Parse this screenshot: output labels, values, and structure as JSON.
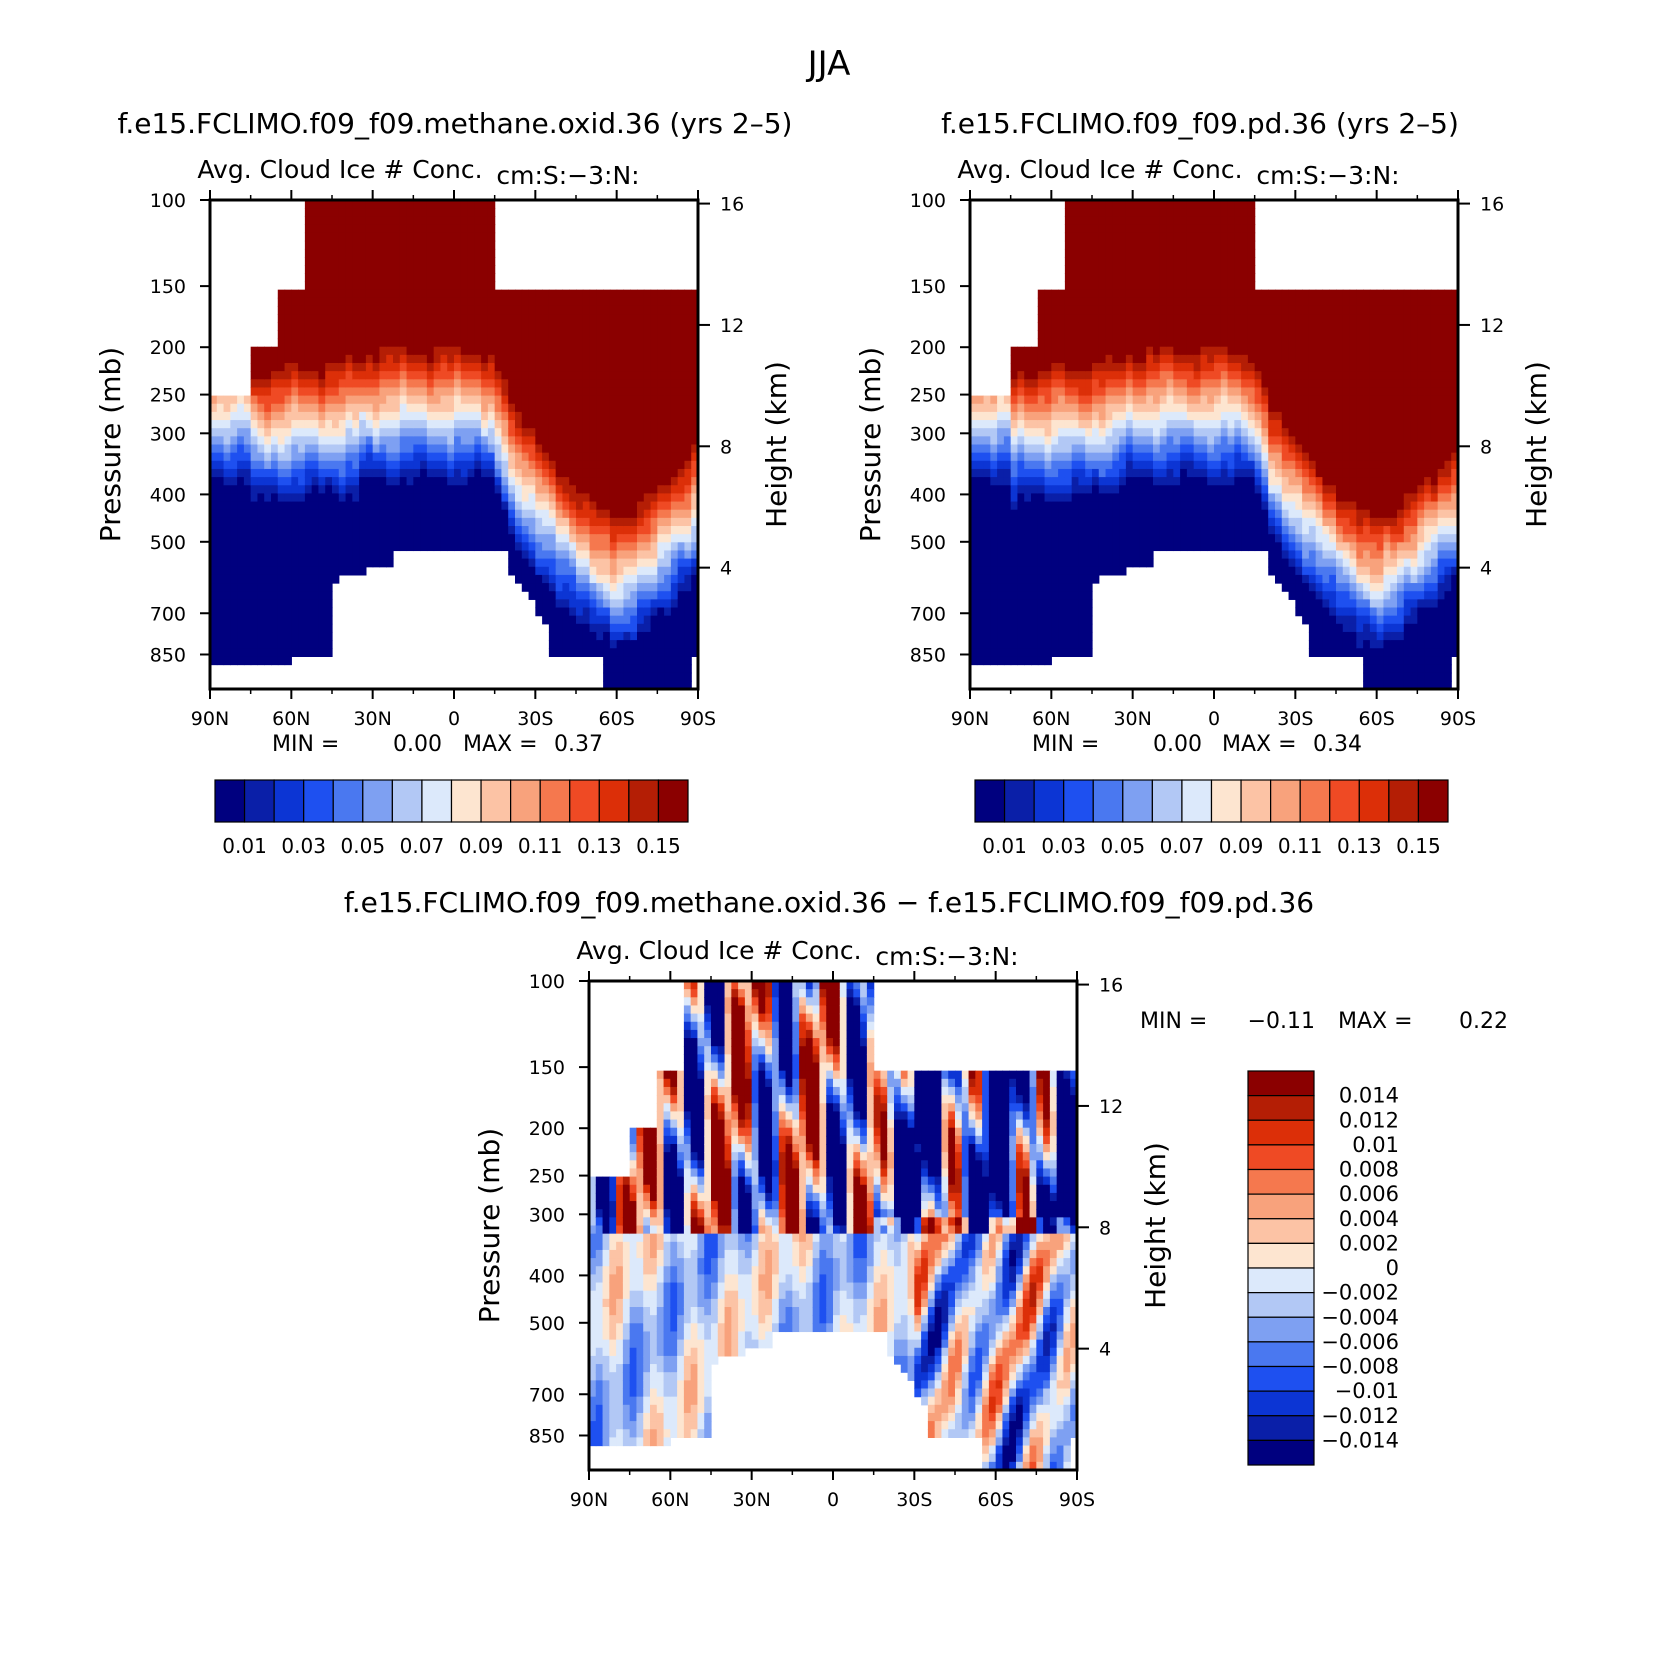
{
  "page_title": "JJA",
  "chart_data": [
    {
      "type": "heatmap",
      "case_title": "f.e15.FCLIMO.f09_f09.methane.oxid.36 (yrs 2–5)",
      "title": "Avg. Cloud Ice # Conc.",
      "units": "cm:S:−3:N:",
      "ylabel": "Pressure (mb)",
      "y2label": "Height (km)",
      "x_ticks": [
        "90N",
        "60N",
        "30N",
        "0",
        "30S",
        "60S",
        "90S"
      ],
      "x_ticks_value": [
        90,
        60,
        30,
        0,
        -30,
        -60,
        -90
      ],
      "y_ticks": [
        "100",
        "150",
        "200",
        "250",
        "300",
        "400",
        "500",
        "700",
        "850"
      ],
      "y_ticks_value": [
        100,
        150,
        200,
        250,
        300,
        400,
        500,
        700,
        850
      ],
      "y_scale": "log",
      "ylim": [
        100,
        1000
      ],
      "y2_ticks": [
        "4",
        "8",
        "12",
        "16"
      ],
      "y2_ticks_value": [
        4,
        8,
        12,
        16
      ],
      "min_label": "MIN =",
      "min_value": "0.00",
      "max_label": "MAX =",
      "max_value": "0.37",
      "colorbar_orientation": "horizontal",
      "colorbar_labels": [
        "0.01",
        "0.03",
        "0.05",
        "0.07",
        "0.09",
        "0.11",
        "0.13",
        "0.15"
      ],
      "levels": [
        0.01,
        0.02,
        0.03,
        0.04,
        0.05,
        0.06,
        0.07,
        0.08,
        0.09,
        0.1,
        0.11,
        0.12,
        0.13,
        0.14,
        0.15
      ],
      "colors": [
        "#00007f",
        "#0a1fa8",
        "#0c35d4",
        "#1e50f0",
        "#4a78f0",
        "#7ea0f2",
        "#b2c8f5",
        "#dce9fb",
        "#fde5d0",
        "#fcc3a5",
        "#f8a27c",
        "#f5784e",
        "#ef4a24",
        "#dc2f08",
        "#b41e05",
        "#8b0000"
      ]
    },
    {
      "type": "heatmap",
      "case_title": "f.e15.FCLIMO.f09_f09.pd.36 (yrs 2–5)",
      "title": "Avg. Cloud Ice # Conc.",
      "units": "cm:S:−3:N:",
      "ylabel": "Pressure (mb)",
      "y2label": "Height (km)",
      "x_ticks": [
        "90N",
        "60N",
        "30N",
        "0",
        "30S",
        "60S",
        "90S"
      ],
      "x_ticks_value": [
        90,
        60,
        30,
        0,
        -30,
        -60,
        -90
      ],
      "y_ticks": [
        "100",
        "150",
        "200",
        "250",
        "300",
        "400",
        "500",
        "700",
        "850"
      ],
      "y_ticks_value": [
        100,
        150,
        200,
        250,
        300,
        400,
        500,
        700,
        850
      ],
      "y_scale": "log",
      "ylim": [
        100,
        1000
      ],
      "y2_ticks": [
        "4",
        "8",
        "12",
        "16"
      ],
      "y2_ticks_value": [
        4,
        8,
        12,
        16
      ],
      "min_label": "MIN =",
      "min_value": "0.00",
      "max_label": "MAX =",
      "max_value": "0.34",
      "colorbar_orientation": "horizontal",
      "colorbar_labels": [
        "0.01",
        "0.03",
        "0.05",
        "0.07",
        "0.09",
        "0.11",
        "0.13",
        "0.15"
      ],
      "levels": [
        0.01,
        0.02,
        0.03,
        0.04,
        0.05,
        0.06,
        0.07,
        0.08,
        0.09,
        0.1,
        0.11,
        0.12,
        0.13,
        0.14,
        0.15
      ],
      "colors": [
        "#00007f",
        "#0a1fa8",
        "#0c35d4",
        "#1e50f0",
        "#4a78f0",
        "#7ea0f2",
        "#b2c8f5",
        "#dce9fb",
        "#fde5d0",
        "#fcc3a5",
        "#f8a27c",
        "#f5784e",
        "#ef4a24",
        "#dc2f08",
        "#b41e05",
        "#8b0000"
      ]
    },
    {
      "type": "heatmap",
      "case_title": "f.e15.FCLIMO.f09_f09.methane.oxid.36 − f.e15.FCLIMO.f09_f09.pd.36",
      "title": "Avg. Cloud Ice # Conc.",
      "units": "cm:S:−3:N:",
      "ylabel": "Pressure (mb)",
      "y2label": "Height (km)",
      "x_ticks": [
        "90N",
        "60N",
        "30N",
        "0",
        "30S",
        "60S",
        "90S"
      ],
      "x_ticks_value": [
        90,
        60,
        30,
        0,
        -30,
        -60,
        -90
      ],
      "y_ticks": [
        "100",
        "150",
        "200",
        "250",
        "300",
        "400",
        "500",
        "700",
        "850"
      ],
      "y_ticks_value": [
        100,
        150,
        200,
        250,
        300,
        400,
        500,
        700,
        850
      ],
      "y_scale": "log",
      "ylim": [
        100,
        1000
      ],
      "y2_ticks": [
        "4",
        "8",
        "12",
        "16"
      ],
      "y2_ticks_value": [
        4,
        8,
        12,
        16
      ],
      "min_label": "MIN =",
      "min_value": "−0.11",
      "max_label": "MAX =",
      "max_value": "0.22",
      "colorbar_orientation": "vertical",
      "colorbar_labels": [
        "0.014",
        "0.012",
        "0.01",
        "0.008",
        "0.006",
        "0.004",
        "0.002",
        "0",
        "−0.002",
        "−0.004",
        "−0.006",
        "−0.008",
        "−0.01",
        "−0.012",
        "−0.014"
      ],
      "levels": [
        -0.014,
        -0.012,
        -0.01,
        -0.008,
        -0.006,
        -0.004,
        -0.002,
        0,
        0.002,
        0.004,
        0.006,
        0.008,
        0.01,
        0.012,
        0.014
      ],
      "colors": [
        "#00007f",
        "#0a1fa8",
        "#0c35d4",
        "#1e50f0",
        "#4a78f0",
        "#7ea0f2",
        "#b2c8f5",
        "#dce9fb",
        "#fde5d0",
        "#fcc3a5",
        "#f8a27c",
        "#f5784e",
        "#ef4a24",
        "#dc2f08",
        "#b41e05",
        "#8b0000"
      ]
    }
  ]
}
